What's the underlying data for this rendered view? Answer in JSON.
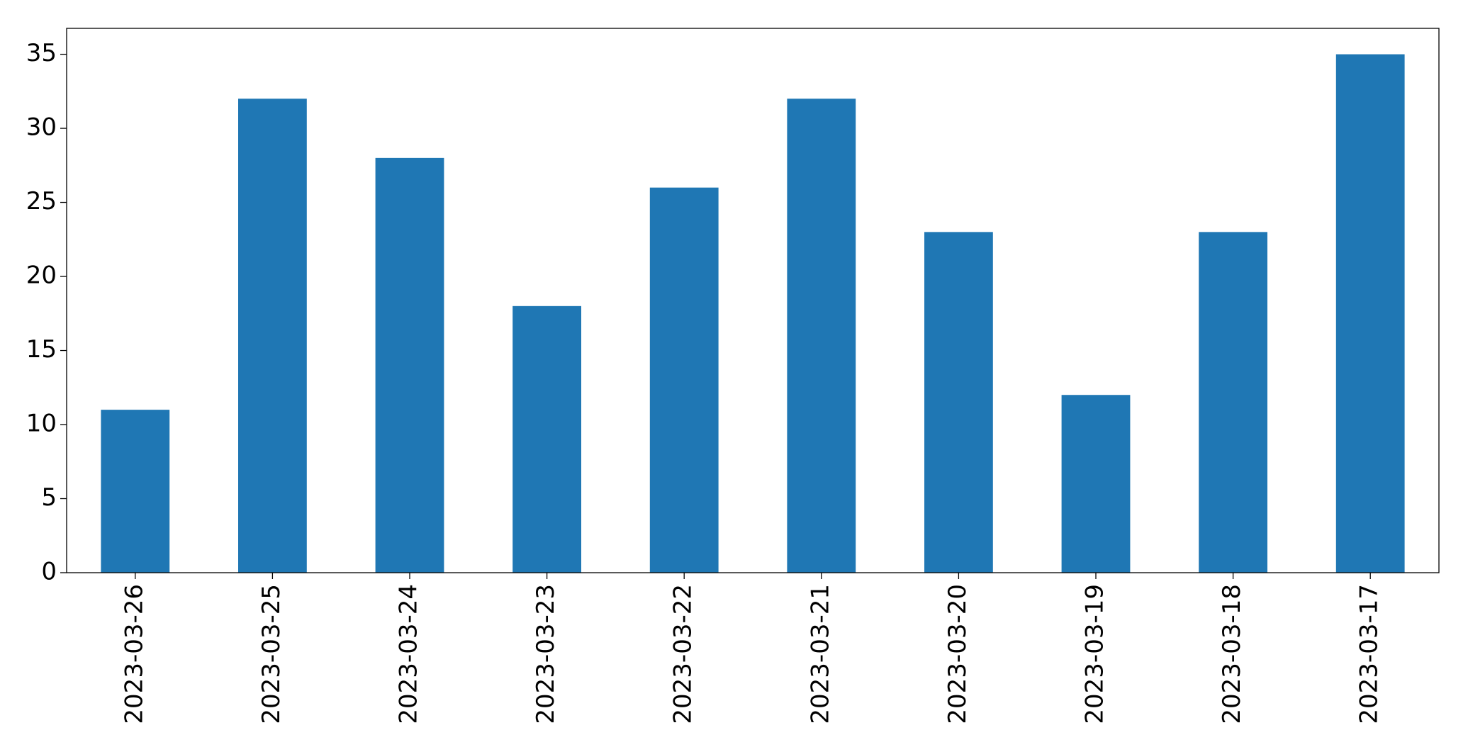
{
  "chart_data": {
    "type": "bar",
    "categories": [
      "2023-03-26",
      "2023-03-25",
      "2023-03-24",
      "2023-03-23",
      "2023-03-22",
      "2023-03-21",
      "2023-03-20",
      "2023-03-19",
      "2023-03-18",
      "2023-03-17"
    ],
    "values": [
      11,
      32,
      28,
      18,
      26,
      32,
      23,
      12,
      23,
      35
    ],
    "color": "#1f77b4",
    "ylim": [
      0,
      36.75
    ],
    "yticks": [
      0,
      5,
      10,
      15,
      20,
      25,
      30,
      35
    ],
    "grid": false
  }
}
